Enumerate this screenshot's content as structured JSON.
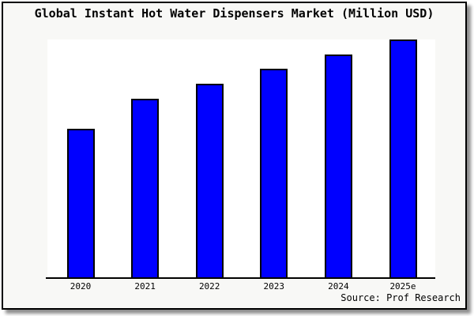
{
  "title": "Global Instant Hot Water Dispensers Market (Million USD)",
  "source_note": "Source: Prof Research",
  "colors": {
    "bar_fill": "#0000ff",
    "bar_border": "#000000",
    "plot_background": "#ffffff",
    "frame_background": "#f8f8f6",
    "frame_border": "#000000"
  },
  "chart_data": {
    "type": "bar",
    "title": "Global Instant Hot Water Dispensers Market (Million USD)",
    "categories": [
      "2020",
      "2021",
      "2022",
      "2023",
      "2024",
      "2025e"
    ],
    "values_relative_pct_of_max": [
      62.5,
      75.1,
      81.4,
      87.7,
      93.7,
      100
    ],
    "xlabel": "",
    "ylabel": "",
    "y_axis_visible": false,
    "y_tick_labels": [],
    "gridlines": false,
    "legend_visible": false,
    "data_labels_visible": false,
    "source": "Source: Prof Research",
    "notes": "No numeric y-axis scale is shown in the image; bar values are relative heights as a percentage of the tallest (2025e) bar."
  }
}
